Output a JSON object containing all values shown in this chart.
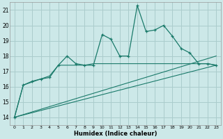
{
  "xlabel": "Humidex (Indice chaleur)",
  "background_color": "#cce8e8",
  "grid_color": "#aacccc",
  "line_color": "#1a7a6a",
  "xlim": [
    -0.5,
    23.5
  ],
  "ylim": [
    13.5,
    21.5
  ],
  "yticks": [
    14,
    15,
    16,
    17,
    18,
    19,
    20,
    21
  ],
  "xticks": [
    0,
    1,
    2,
    3,
    4,
    5,
    6,
    7,
    8,
    9,
    10,
    11,
    12,
    13,
    14,
    15,
    16,
    17,
    18,
    19,
    20,
    21,
    22,
    23
  ],
  "main_x": [
    0,
    1,
    2,
    3,
    4,
    5,
    6,
    7,
    8,
    9,
    10,
    11,
    12,
    13,
    14,
    15,
    16,
    17,
    18,
    19,
    20,
    21,
    22,
    23
  ],
  "main_y": [
    14.0,
    16.1,
    16.35,
    16.5,
    16.6,
    17.4,
    18.0,
    17.5,
    17.4,
    17.4,
    19.4,
    19.1,
    18.0,
    18.0,
    21.3,
    19.6,
    19.7,
    20.0,
    19.3,
    18.5,
    18.2,
    17.5,
    17.5,
    17.4
  ],
  "trend1_x": [
    0,
    23
  ],
  "trend1_y": [
    14.0,
    17.4
  ],
  "trend2_x": [
    0,
    23
  ],
  "trend2_y": [
    14.0,
    18.0
  ],
  "smooth_x": [
    0,
    1,
    2,
    3,
    4,
    5,
    6,
    7,
    8,
    9,
    10,
    11,
    12,
    13,
    14,
    15,
    16,
    17,
    18,
    19,
    20,
    21,
    22,
    23
  ],
  "smooth_y": [
    14.0,
    16.1,
    16.3,
    16.5,
    16.7,
    17.4,
    17.4,
    17.4,
    17.4,
    17.5,
    17.5,
    17.5,
    17.5,
    17.5,
    17.5,
    17.5,
    17.5,
    17.5,
    17.5,
    17.5,
    17.5,
    17.5,
    17.5,
    17.4
  ]
}
